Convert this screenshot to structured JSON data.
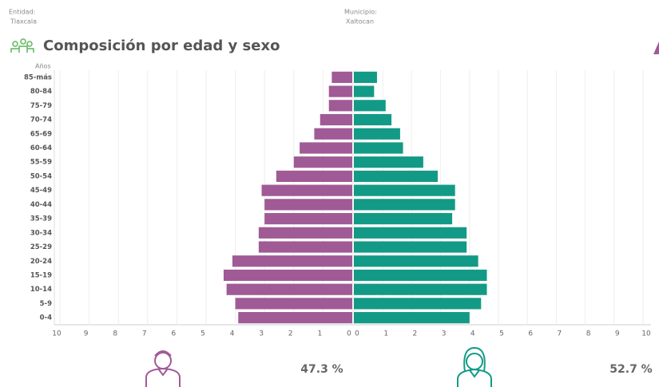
{
  "header": {
    "entity_label": "Entidad:",
    "entity": "Tlaxcala",
    "municipality_label": "Municipio:",
    "municipality": "Xaltocan"
  },
  "chart_data": {
    "type": "pyramid",
    "title": "Composición por edad y sexo",
    "y_label": "Años",
    "categories": [
      "85-más",
      "80-84",
      "75-79",
      "70-74",
      "65-69",
      "60-64",
      "55-59",
      "50-54",
      "45-49",
      "40-44",
      "35-39",
      "30-34",
      "25-29",
      "20-24",
      "15-19",
      "10-14",
      "5-9",
      "0-4"
    ],
    "series": [
      {
        "color": "#a05a96",
        "values": [
          0.7,
          0.8,
          0.8,
          1.1,
          1.3,
          1.8,
          2.0,
          2.6,
          3.1,
          3.0,
          3.0,
          3.2,
          3.2,
          4.1,
          4.4,
          4.3,
          4.0,
          3.9
        ]
      },
      {
        "color": "#139a86",
        "values": [
          0.8,
          0.7,
          1.1,
          1.3,
          1.6,
          1.7,
          2.4,
          2.9,
          3.5,
          3.5,
          3.4,
          3.9,
          3.9,
          4.3,
          4.6,
          4.6,
          4.4,
          4.0
        ]
      }
    ],
    "xlim": [
      0,
      10
    ],
    "xticks": [
      0,
      1,
      2,
      3,
      4,
      5,
      6,
      7,
      8,
      9,
      10
    ],
    "grid": true
  },
  "summary": {
    "men": "47.3 %",
    "women": "52.7 %"
  }
}
